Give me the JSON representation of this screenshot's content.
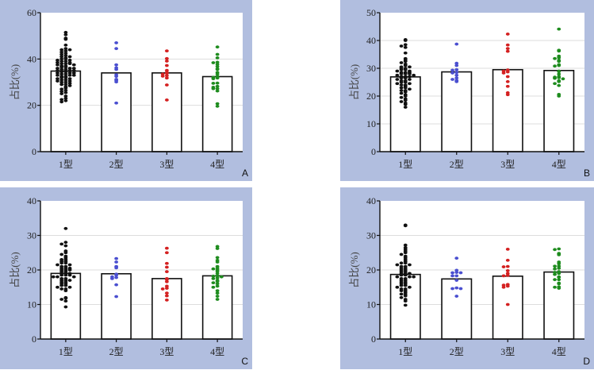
{
  "frame_color": "#b1bedf",
  "chart_data": [
    {
      "type": "bar",
      "panel_label": "A",
      "ylabel": "占比(%)",
      "ylim": [
        0,
        60
      ],
      "yticks": [
        0,
        20,
        40,
        60
      ],
      "gridlines": [
        20,
        40
      ],
      "categories": [
        "1型",
        "2型",
        "3型",
        "4型"
      ],
      "colors": [
        "#111111",
        "#4a4fd0",
        "#d42020",
        "#1e8c1e"
      ],
      "bar_means": [
        34.8,
        34.0,
        34.0,
        32.4
      ],
      "points": [
        [
          51.5,
          50.5,
          49,
          48.5,
          46,
          44.5,
          44,
          44,
          43.5,
          43,
          42.5,
          42,
          41.5,
          41,
          41,
          40.5,
          40,
          40,
          39.5,
          39.5,
          39,
          39,
          38.5,
          38.5,
          38,
          38,
          38,
          37.5,
          37.5,
          37,
          37,
          36.5,
          36.5,
          36,
          36,
          36,
          35.5,
          35.5,
          35,
          35,
          35,
          34.5,
          34.5,
          34,
          34,
          34,
          33.5,
          33.5,
          33,
          33,
          33,
          32.5,
          32.5,
          32,
          32,
          31.5,
          31.5,
          31,
          31,
          30.5,
          30.5,
          30,
          30,
          29.5,
          29,
          29,
          28.5,
          28,
          27.5,
          27,
          26.5,
          26,
          25.5,
          25,
          24,
          23,
          22.5,
          22,
          21.5
        ],
        [
          47,
          44.5,
          37.5,
          36.2,
          35.5,
          33.2,
          32.5,
          31.2,
          30.8,
          30.1,
          21
        ],
        [
          43.5,
          40.2,
          39.1,
          37.2,
          35.1,
          34.2,
          33.8,
          33.5,
          32.8,
          32.6,
          31.8,
          28.8,
          22.3
        ],
        [
          45.2,
          42,
          40.5,
          38.6,
          38.4,
          37.7,
          36.8,
          35.8,
          35.5,
          34.2,
          33.5,
          32.5,
          32.1,
          31.8,
          31.5,
          29.6,
          29.5,
          28.2,
          27.8,
          27.2,
          27.2,
          26.2,
          20.7,
          19.6
        ]
      ]
    },
    {
      "type": "bar",
      "panel_label": "B",
      "ylabel": "占比(%)",
      "ylim": [
        0,
        50
      ],
      "yticks": [
        0,
        10,
        20,
        30,
        40,
        50
      ],
      "gridlines": [
        10,
        20,
        30,
        40
      ],
      "categories": [
        "1型",
        "2型",
        "3型",
        "4型"
      ],
      "colors": [
        "#111111",
        "#4a4fd0",
        "#d42020",
        "#1e8c1e"
      ],
      "bar_means": [
        26.9,
        28.7,
        29.5,
        29.2
      ],
      "points": [
        [
          40.3,
          40,
          38.5,
          38,
          37.5,
          35.5,
          33.5,
          33,
          32.5,
          32,
          31.5,
          31,
          30.5,
          30.5,
          30,
          30,
          29.5,
          29.5,
          29,
          29,
          28.5,
          28.5,
          28.5,
          28,
          28,
          28,
          27.5,
          27.5,
          27,
          27,
          27,
          26.5,
          26.5,
          26,
          26,
          25.5,
          25.5,
          25,
          25,
          24.5,
          24.5,
          24,
          24,
          23.5,
          23,
          23,
          22.5,
          22,
          22,
          21.5,
          21,
          20.5,
          20,
          19.5,
          19,
          18.5,
          18,
          17.5,
          17,
          16
        ],
        [
          38.7,
          31.8,
          31,
          29.5,
          29.3,
          28.5,
          28.3,
          27.5,
          26.5,
          26,
          25.6,
          25.2
        ],
        [
          42.3,
          38.4,
          37.1,
          36.1,
          29.4,
          29,
          28.7,
          28.3,
          27,
          25.2,
          23.5,
          21.2,
          20.5
        ],
        [
          44.1,
          36.5,
          36.2,
          34.4,
          33.8,
          33.5,
          32.9,
          32.5,
          31.3,
          31,
          30.8,
          29,
          28.8,
          27.9,
          27,
          26.8,
          26.6,
          26.4,
          26.2,
          25.5,
          25.2,
          24.5,
          23.8,
          20.6,
          20
        ]
      ]
    },
    {
      "type": "bar",
      "panel_label": "C",
      "ylabel": "占比(%)",
      "ylim": [
        0,
        40
      ],
      "yticks": [
        0,
        10,
        20,
        30,
        40
      ],
      "gridlines": [
        10,
        20,
        30
      ],
      "categories": [
        "1型",
        "2型",
        "3型",
        "4型"
      ],
      "colors": [
        "#111111",
        "#4a4fd0",
        "#d42020",
        "#1e8c1e"
      ],
      "bar_means": [
        19.0,
        18.9,
        17.5,
        18.3
      ],
      "points": [
        [
          32,
          28,
          27.5,
          27,
          25.5,
          25,
          24.5,
          24,
          23.5,
          23,
          23,
          22.5,
          22.5,
          22,
          22,
          21.5,
          21.5,
          21,
          21,
          20.5,
          20.5,
          20.5,
          20,
          20,
          20,
          19.5,
          19.5,
          19,
          19,
          19,
          18.5,
          18.5,
          18.5,
          18,
          18,
          18,
          17.5,
          17.5,
          17,
          17,
          17,
          16.5,
          16.5,
          16,
          16,
          15.5,
          15.5,
          15,
          15,
          14.5,
          14.5,
          14,
          12,
          11.8,
          11.5,
          11,
          9.3
        ],
        [
          23.3,
          22.3,
          21,
          20.6,
          18.8,
          18.5,
          18,
          17.8,
          17.5,
          15.7,
          12.3
        ],
        [
          26.3,
          25,
          21.9,
          20.8,
          19.5,
          17.5,
          17.2,
          16.6,
          15.3,
          14.7,
          14.5,
          13.3,
          12.5,
          11.3
        ],
        [
          26.8,
          26.2,
          23.6,
          22.8,
          22.3,
          21,
          20.5,
          20.3,
          20,
          19.6,
          19,
          18.3,
          18.2,
          18,
          17.7,
          17.5,
          17,
          16.7,
          16.3,
          16,
          15.3,
          15,
          14,
          13.3,
          12.4,
          11.5
        ]
      ]
    },
    {
      "type": "bar",
      "panel_label": "D",
      "ylabel": "占比(%)",
      "ylim": [
        0,
        40
      ],
      "yticks": [
        0,
        10,
        20,
        30,
        40
      ],
      "gridlines": [
        10,
        20,
        30
      ],
      "categories": [
        "1型",
        "2型",
        "3型",
        "4型"
      ],
      "colors": [
        "#111111",
        "#4a4fd0",
        "#d42020",
        "#1e8c1e"
      ],
      "bar_means": [
        18.7,
        17.4,
        18.2,
        19.4
      ],
      "points": [
        [
          33,
          32.8,
          27.2,
          26.5,
          26,
          25.5,
          25,
          24.5,
          24,
          23.5,
          23,
          22.5,
          22,
          22,
          21.5,
          21.5,
          21,
          21,
          20.5,
          20.5,
          20,
          20,
          19.5,
          19.5,
          19,
          19,
          19,
          18.5,
          18.5,
          18,
          18,
          18,
          17.5,
          17.5,
          17,
          17,
          16.5,
          16.5,
          16,
          16,
          15.5,
          15.5,
          15,
          15,
          14.5,
          14.5,
          14,
          14,
          13.5,
          13,
          13,
          12.5,
          12,
          11.5,
          11,
          9.8
        ],
        [
          23.4,
          19.9,
          19.3,
          19.2,
          19.2,
          18.3,
          18.3,
          17,
          14.8,
          14.6,
          14.6,
          12.4
        ],
        [
          26,
          22.8,
          21,
          20.9,
          19.8,
          19,
          18.4,
          18.3,
          15.8,
          15.6,
          15.3,
          15,
          10
        ],
        [
          26.1,
          25.9,
          24.8,
          24.4,
          22.3,
          21.8,
          21.1,
          21.1,
          20.5,
          20.3,
          19.5,
          19.3,
          19,
          18.7,
          18,
          17.9,
          17.2,
          17.2,
          16.2,
          16,
          15.1,
          15,
          14.7
        ]
      ]
    }
  ]
}
